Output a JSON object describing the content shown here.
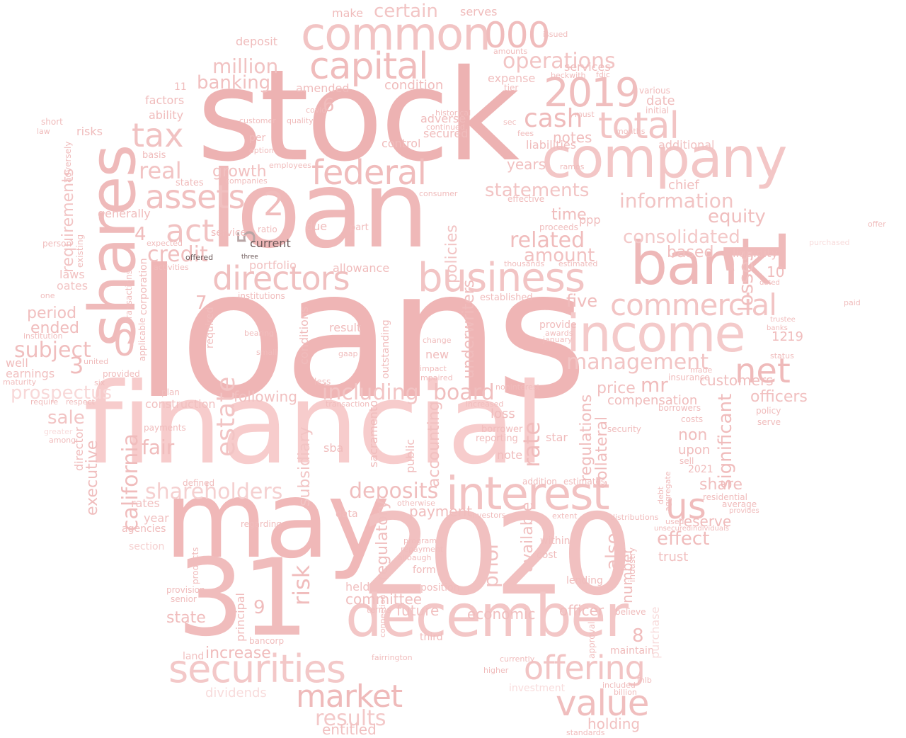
{
  "words": [
    {
      "text": "loans",
      "color": "#efb5b5"
    },
    {
      "text": "financial",
      "color": "#f7cccc"
    },
    {
      "text": "stock",
      "color": "#edb2b2"
    },
    {
      "text": "loan",
      "color": "#efb8b8"
    },
    {
      "text": "may",
      "color": "#f0b8b8"
    },
    {
      "text": "2020",
      "color": "#f1c0c0"
    },
    {
      "text": "31",
      "color": "#f0bcbc"
    },
    {
      "text": "december",
      "color": "#f3c6c6"
    },
    {
      "text": "company",
      "color": "#f3c6c6"
    },
    {
      "text": "common",
      "color": "#f2c4c4"
    },
    {
      "text": "bank",
      "color": "#eeb8b8"
    },
    {
      "text": "1",
      "color": "#efbaba"
    },
    {
      "text": "shares",
      "color": "#efbaba"
    },
    {
      "text": "income",
      "color": "#f4caca"
    },
    {
      "text": "business",
      "color": "#f2c4c4"
    },
    {
      "text": "interest",
      "color": "#f2c2c2"
    },
    {
      "text": "securities",
      "color": "#f3c8c8"
    },
    {
      "text": "capital",
      "color": "#f0bcbc"
    },
    {
      "text": "2019",
      "color": "#f0bebe"
    },
    {
      "text": "000",
      "color": "#f0bcbc"
    },
    {
      "text": "directors",
      "color": "#f0c0c0"
    },
    {
      "text": "federal",
      "color": "#f0bcbc"
    },
    {
      "text": "assets",
      "color": "#f1c0c0"
    },
    {
      "text": "tax",
      "color": "#f1c2c2"
    },
    {
      "text": "total",
      "color": "#f2c4c4"
    },
    {
      "text": "commercial",
      "color": "#f2c4c4"
    },
    {
      "text": "market",
      "color": "#efbaba"
    },
    {
      "text": "offering",
      "color": "#f2c4c4"
    },
    {
      "text": "value",
      "color": "#f0bebe"
    },
    {
      "text": "net",
      "color": "#efbaba"
    },
    {
      "text": "us",
      "color": "#f0bcbc"
    },
    {
      "text": "management",
      "color": "#f2c4c4"
    },
    {
      "text": "cash",
      "color": "#efbaba"
    },
    {
      "text": "operations",
      "color": "#f2c4c4"
    },
    {
      "text": "consolidated",
      "color": "#f3c8c8"
    },
    {
      "text": "information",
      "color": "#f2c4c4"
    },
    {
      "text": "statements",
      "color": "#f2c4c4"
    },
    {
      "text": "act",
      "color": "#f1c2c2"
    },
    {
      "text": "real",
      "color": "#f2c4c4"
    },
    {
      "text": "credit",
      "color": "#f0bebe"
    },
    {
      "text": "million",
      "color": "#f1c2c2"
    },
    {
      "text": "banking",
      "color": "#f1c0c0"
    },
    {
      "text": "including",
      "color": "#f2c4c4"
    },
    {
      "text": "board",
      "color": "#f0bebe"
    },
    {
      "text": "deposits",
      "color": "#f0bebe"
    },
    {
      "text": "shareholders",
      "color": "#f5d0d0"
    },
    {
      "text": "california",
      "color": "#f0bcbc"
    },
    {
      "text": "estate",
      "color": "#f2c4c4"
    },
    {
      "text": "results",
      "color": "#f3c8c8"
    },
    {
      "text": "related",
      "color": "#f0bcbc"
    },
    {
      "text": "amount",
      "color": "#f1c0c0"
    },
    {
      "text": "subject",
      "color": "#f0bebe"
    },
    {
      "text": "5",
      "color": "#b8a5a5"
    },
    {
      "text": "current",
      "color": "#6e5a5a"
    },
    {
      "text": "offered",
      "color": "#6e5a5a"
    },
    {
      "text": "three",
      "color": "#6e5a5a"
    },
    {
      "text": "certain",
      "color": "#f2c4c4"
    },
    {
      "text": "risk",
      "color": "#f0bcbc"
    },
    {
      "text": "losses",
      "color": "#f1c0c0"
    },
    {
      "text": "equity",
      "color": "#f0bebe"
    },
    {
      "text": "prospectus",
      "color": "#f8d8d8"
    },
    {
      "text": "growth",
      "color": "#f1c0c0"
    },
    {
      "text": "following",
      "color": "#f1c0c0"
    },
    {
      "text": "fair",
      "color": "#f0bcbc"
    },
    {
      "text": "period",
      "color": "#f1c0c0"
    },
    {
      "text": "ended",
      "color": "#f0bcbc"
    },
    {
      "text": "sale",
      "color": "#f2c4c4"
    },
    {
      "text": "requirements",
      "color": "#f2c4c4"
    },
    {
      "text": "executive",
      "color": "#f0bebe"
    },
    {
      "text": "share",
      "color": "#f0bebe"
    },
    {
      "text": "effect",
      "color": "#f0bcbc"
    },
    {
      "text": "holding",
      "color": "#f1c0c0"
    },
    {
      "text": "entitled",
      "color": "#f1c0c0"
    },
    {
      "text": "dividends",
      "color": "#f8dcdc"
    },
    {
      "text": "increase",
      "color": "#f0bcbc"
    },
    {
      "text": "state",
      "color": "#f0bcbc"
    },
    {
      "text": "future",
      "color": "#f1c0c0"
    },
    {
      "text": "committee",
      "color": "#f0bebe"
    },
    {
      "text": "economic",
      "color": "#f0bebe"
    },
    {
      "text": "officer",
      "color": "#f0bcbc"
    },
    {
      "text": "number",
      "color": "#f0bcbc"
    },
    {
      "text": "prior",
      "color": "#f1c0c0"
    },
    {
      "text": "rate",
      "color": "#f0bcbc"
    },
    {
      "text": "available",
      "color": "#f1c0c0"
    },
    {
      "text": "accounting",
      "color": "#f1c0c0"
    },
    {
      "text": "policies",
      "color": "#f2c4c4"
    },
    {
      "text": "payment",
      "color": "#f0bcbc"
    },
    {
      "text": "regulatory",
      "color": "#f0bebe"
    },
    {
      "text": "subsidiary",
      "color": "#f2c4c4"
    },
    {
      "text": "underwriters",
      "color": "#f0bcbc"
    },
    {
      "text": "also",
      "color": "#f1c0c0"
    },
    {
      "text": "significant",
      "color": "#f0bcbc"
    },
    {
      "text": "officers",
      "color": "#f1c0c0"
    },
    {
      "text": "customers",
      "color": "#f0bebe"
    },
    {
      "text": "reserve",
      "color": "#f0bcbc"
    },
    {
      "text": "price",
      "color": "#f1c0c0"
    },
    {
      "text": "mr",
      "color": "#f0bcbc"
    },
    {
      "text": "compensation",
      "color": "#f0bcbc"
    },
    {
      "text": "regulations",
      "color": "#f0bebe"
    },
    {
      "text": "collateral",
      "color": "#f0bcbc"
    },
    {
      "text": "non",
      "color": "#f0bebe"
    },
    {
      "text": "upon",
      "color": "#f0bcbc"
    },
    {
      "text": "based",
      "color": "#f1c0c0"
    },
    {
      "text": "liquidity",
      "color": "#f0bcbc"
    },
    {
      "text": "five",
      "color": "#f0bcbc"
    },
    {
      "text": "time",
      "color": "#f0bcbc"
    },
    {
      "text": "notes",
      "color": "#f0bcbc"
    },
    {
      "text": "years",
      "color": "#f1c0c0"
    },
    {
      "text": "liabilities",
      "color": "#f0bcbc"
    },
    {
      "text": "additional",
      "color": "#f1c2c2"
    },
    {
      "text": "date",
      "color": "#f0bebe"
    },
    {
      "text": "chief",
      "color": "#f0bcbc"
    },
    {
      "text": "services",
      "color": "#f0bcbc"
    },
    {
      "text": "expense",
      "color": "#f0bebe"
    },
    {
      "text": "make",
      "color": "#f0bcbc"
    },
    {
      "text": "serves",
      "color": "#f0bcbc"
    },
    {
      "text": "condition",
      "color": "#f0bcbc"
    },
    {
      "text": "amended",
      "color": "#f0bcbc"
    },
    {
      "text": "adverse",
      "color": "#f0bcbc"
    },
    {
      "text": "secured",
      "color": "#f0bcbc"
    },
    {
      "text": "control",
      "color": "#f0bcbc"
    },
    {
      "text": "deposit",
      "color": "#f0bcbc"
    },
    {
      "text": "factors",
      "color": "#f0bcbc"
    },
    {
      "text": "ability",
      "color": "#f0bcbc"
    },
    {
      "text": "risks",
      "color": "#f0bcbc"
    },
    {
      "text": "generally",
      "color": "#f0bcbc"
    },
    {
      "text": "service",
      "color": "#efbaba"
    },
    {
      "text": "portfolio",
      "color": "#f1c0c0"
    },
    {
      "text": "allowance",
      "color": "#f0bcbc"
    },
    {
      "text": "laws",
      "color": "#f1c0c0"
    },
    {
      "text": "oates",
      "color": "#f2c4c4"
    },
    {
      "text": "construction",
      "color": "#f1c0c0"
    },
    {
      "text": "director",
      "color": "#f0bcbc"
    },
    {
      "text": "earnings",
      "color": "#f1c0c0"
    },
    {
      "text": "well",
      "color": "#f0bcbc"
    },
    {
      "text": "rates",
      "color": "#f1c0c0"
    },
    {
      "text": "year",
      "color": "#f1c0c0"
    },
    {
      "text": "section",
      "color": "#f5d0d0"
    },
    {
      "text": "agencies",
      "color": "#f0bcbc"
    },
    {
      "text": "due",
      "color": "#f0bcbc"
    },
    {
      "text": "ppp",
      "color": "#f0bcbc"
    },
    {
      "text": "sba",
      "color": "#f0bcbc"
    },
    {
      "text": "result",
      "color": "#f0bcbc"
    },
    {
      "text": "new",
      "color": "#f0bcbc"
    },
    {
      "text": "loss",
      "color": "#f0bcbc"
    },
    {
      "text": "note",
      "color": "#f0bcbc"
    },
    {
      "text": "star",
      "color": "#f0bcbc"
    },
    {
      "text": "sacramento",
      "color": "#f0bcbc"
    },
    {
      "text": "public",
      "color": "#f0bcbc"
    },
    {
      "text": "data",
      "color": "#f0bcbc"
    },
    {
      "text": "held",
      "color": "#f1c0c0"
    },
    {
      "text": "terms",
      "color": "#f0bcbc"
    },
    {
      "text": "form",
      "color": "#f0bcbc"
    },
    {
      "text": "position",
      "color": "#f0bcbc"
    },
    {
      "text": "third",
      "color": "#f0bcbc"
    },
    {
      "text": "trust",
      "color": "#f1c0c0"
    },
    {
      "text": "maintain",
      "color": "#f0bcbc"
    },
    {
      "text": "investment",
      "color": "#f8dcdc"
    },
    {
      "text": "purchase",
      "color": "#f8dcdc"
    },
    {
      "text": "purchased",
      "color": "#f8dcdc"
    },
    {
      "text": "offer",
      "color": "#f0bcbc"
    },
    {
      "text": "paid",
      "color": "#f0bcbc"
    },
    {
      "text": "land",
      "color": "#f1c0c0"
    },
    {
      "text": "bancorp",
      "color": "#f0bcbc"
    },
    {
      "text": "principal",
      "color": "#f0bcbc"
    },
    {
      "text": "provision",
      "color": "#f0bcbc"
    },
    {
      "text": "senior",
      "color": "#f0bcbc"
    },
    {
      "text": "regarding",
      "color": "#f0bcbc"
    },
    {
      "text": "products",
      "color": "#f0bcbc"
    },
    {
      "text": "provided",
      "color": "#f0bcbc"
    },
    {
      "text": "plan",
      "color": "#f0bcbc"
    },
    {
      "text": "payments",
      "color": "#f0bcbc"
    },
    {
      "text": "defined",
      "color": "#f0bcbc"
    },
    {
      "text": "0",
      "color": "#f0bcbc"
    },
    {
      "text": "3",
      "color": "#f0bcbc"
    },
    {
      "text": "2",
      "color": "#f0bcbc"
    },
    {
      "text": "4",
      "color": "#f0bcbc"
    },
    {
      "text": "6",
      "color": "#f0bcbc"
    },
    {
      "text": "7",
      "color": "#f0bcbc"
    },
    {
      "text": "8",
      "color": "#f0bcbc"
    },
    {
      "text": "9",
      "color": "#f0bcbc"
    },
    {
      "text": "10",
      "color": "#f0bcbc"
    },
    {
      "text": "12",
      "color": "#f0bcbc"
    },
    {
      "text": "19",
      "color": "#f0bcbc"
    },
    {
      "text": "11",
      "color": "#f0bcbc"
    },
    {
      "text": "2021",
      "color": "#f0bcbc"
    },
    {
      "text": "cost",
      "color": "#f0bcbc"
    },
    {
      "text": "within",
      "color": "#f0bcbc"
    },
    {
      "text": "addition",
      "color": "#f0bcbc"
    },
    {
      "text": "estimates",
      "color": "#f0bcbc"
    },
    {
      "text": "lending",
      "color": "#f0bcbc"
    },
    {
      "text": "believe",
      "color": "#f0bcbc"
    },
    {
      "text": "approval",
      "color": "#f0bcbc"
    },
    {
      "text": "borrower",
      "color": "#f0bcbc"
    },
    {
      "text": "reporting",
      "color": "#f0bcbc"
    },
    {
      "text": "insurance",
      "color": "#f0bcbc"
    },
    {
      "text": "residential",
      "color": "#f0bcbc"
    },
    {
      "text": "average",
      "color": "#f0bcbc"
    },
    {
      "text": "policy",
      "color": "#f0bcbc"
    },
    {
      "text": "serve",
      "color": "#f0bcbc"
    },
    {
      "text": "security",
      "color": "#f0bcbc"
    },
    {
      "text": "borrowers",
      "color": "#f0bcbc"
    },
    {
      "text": "costs",
      "color": "#f0bcbc"
    },
    {
      "text": "sell",
      "color": "#f0bcbc"
    },
    {
      "text": "banks",
      "color": "#f0bcbc"
    },
    {
      "text": "status",
      "color": "#f0bcbc"
    },
    {
      "text": "trustee",
      "color": "#f0bcbc"
    },
    {
      "text": "dated",
      "color": "#f0bcbc"
    },
    {
      "text": "various",
      "color": "#f0bcbc"
    },
    {
      "text": "initial",
      "color": "#f0bcbc"
    },
    {
      "text": "tier",
      "color": "#f0bcbc"
    },
    {
      "text": "issued",
      "color": "#f0bcbc"
    },
    {
      "text": "beckwith",
      "color": "#f0bcbc"
    },
    {
      "text": "fdic",
      "color": "#f0bcbc"
    },
    {
      "text": "amounts",
      "color": "#f0bcbc"
    },
    {
      "text": "per",
      "color": "#f0bcbc"
    },
    {
      "text": "customer",
      "color": "#f0bcbc"
    },
    {
      "text": "option",
      "color": "#f0bcbc"
    },
    {
      "text": "employees",
      "color": "#f0bcbc"
    },
    {
      "text": "states",
      "color": "#f0bcbc"
    },
    {
      "text": "companies",
      "color": "#f0bcbc"
    },
    {
      "text": "quality",
      "color": "#f0bcbc"
    },
    {
      "text": "ratio",
      "color": "#f0bcbc"
    },
    {
      "text": "part",
      "color": "#f0bcbc"
    },
    {
      "text": "consumer",
      "color": "#f0bcbc"
    },
    {
      "text": "effective",
      "color": "#f0bcbc"
    },
    {
      "text": "proceeds",
      "color": "#f0bcbc"
    },
    {
      "text": "estimated",
      "color": "#f0bcbc"
    },
    {
      "text": "thousands",
      "color": "#f0bcbc"
    },
    {
      "text": "established",
      "color": "#f0bcbc"
    },
    {
      "text": "provide",
      "color": "#f0bcbc"
    },
    {
      "text": "awards",
      "color": "#f0bcbc"
    },
    {
      "text": "january",
      "color": "#f0bcbc"
    },
    {
      "text": "impaired",
      "color": "#f0bcbc"
    },
    {
      "text": "change",
      "color": "#f0bcbc"
    },
    {
      "text": "impact",
      "color": "#f0bcbc"
    },
    {
      "text": "increased",
      "color": "#f0bcbc"
    },
    {
      "text": "noninterest",
      "color": "#f0bcbc"
    },
    {
      "text": "transaction",
      "color": "#f0bcbc"
    },
    {
      "text": "less",
      "color": "#f0bcbc"
    },
    {
      "text": "gaap",
      "color": "#f0bcbc"
    },
    {
      "text": "outstanding",
      "color": "#f0bcbc"
    },
    {
      "text": "conditions",
      "color": "#f0bcbc"
    },
    {
      "text": "institutions",
      "color": "#f0bcbc"
    },
    {
      "text": "small",
      "color": "#f0bcbc"
    },
    {
      "text": "bearing",
      "color": "#f0bcbc"
    },
    {
      "text": "activities",
      "color": "#f0bcbc"
    },
    {
      "text": "transactions",
      "color": "#f0bcbc"
    },
    {
      "text": "applicable",
      "color": "#f0bcbc"
    },
    {
      "text": "corporation",
      "color": "#f0bcbc"
    },
    {
      "text": "required",
      "color": "#f0bcbc"
    },
    {
      "text": "existing",
      "color": "#f0bcbc"
    },
    {
      "text": "adversely",
      "color": "#f0bcbc"
    },
    {
      "text": "short",
      "color": "#f0bcbc"
    },
    {
      "text": "law",
      "color": "#f0bcbc"
    },
    {
      "text": "person",
      "color": "#f0bcbc"
    },
    {
      "text": "one",
      "color": "#f0bcbc"
    },
    {
      "text": "institution",
      "color": "#f0bcbc"
    },
    {
      "text": "united",
      "color": "#f0bcbc"
    },
    {
      "text": "six",
      "color": "#f0bcbc"
    },
    {
      "text": "respect",
      "color": "#f0bcbc"
    },
    {
      "text": "among",
      "color": "#f0bcbc"
    },
    {
      "text": "greater",
      "color": "#f8dcdc"
    },
    {
      "text": "require",
      "color": "#f0bcbc"
    },
    {
      "text": "maturity",
      "color": "#f0bcbc"
    },
    {
      "text": "expected",
      "color": "#f0bcbc"
    },
    {
      "text": "basis",
      "color": "#f0bcbc"
    },
    {
      "text": "covid",
      "color": "#f0bcbc"
    },
    {
      "text": "sec",
      "color": "#f0bcbc"
    },
    {
      "text": "fees",
      "color": "#f0bcbc"
    },
    {
      "text": "months",
      "color": "#f0bcbc"
    },
    {
      "text": "continued",
      "color": "#f0bcbc"
    },
    {
      "text": "historical",
      "color": "#f0bcbc"
    },
    {
      "text": "program",
      "color": "#f0bcbc"
    },
    {
      "text": "repayment",
      "color": "#f0bcbc"
    },
    {
      "text": "allbaugh",
      "color": "#f0bcbc"
    },
    {
      "text": "connection",
      "color": "#f0bcbc"
    },
    {
      "text": "investors",
      "color": "#f0bcbc"
    },
    {
      "text": "otherwise",
      "color": "#f0bcbc"
    },
    {
      "text": "fairrington",
      "color": "#f0bcbc"
    },
    {
      "text": "currently",
      "color": "#f0bcbc"
    },
    {
      "text": "higher",
      "color": "#f0bcbc"
    },
    {
      "text": "fhlb",
      "color": "#f0bcbc"
    },
    {
      "text": "billion",
      "color": "#f0bcbc"
    },
    {
      "text": "included",
      "color": "#f0bcbc"
    },
    {
      "text": "standards",
      "color": "#f0bcbc"
    },
    {
      "text": "must",
      "color": "#f0bcbc"
    },
    {
      "text": "ramos",
      "color": "#f0bcbc"
    },
    {
      "text": "debt",
      "color": "#f0bcbc"
    },
    {
      "text": "aggregate",
      "color": "#f0bcbc"
    },
    {
      "text": "used",
      "color": "#f0bcbc"
    },
    {
      "text": "made",
      "color": "#f0bcbc"
    },
    {
      "text": "extent",
      "color": "#f0bcbc"
    },
    {
      "text": "distributions",
      "color": "#f0bcbc"
    },
    {
      "text": "industry",
      "color": "#f0bcbc"
    },
    {
      "text": "provides",
      "color": "#f0bcbc"
    },
    {
      "text": "unsecuredindividuals",
      "color": "#f0bcbc"
    },
    {
      "text": "including_small",
      "color": "#f0bcbc"
    }
  ]
}
